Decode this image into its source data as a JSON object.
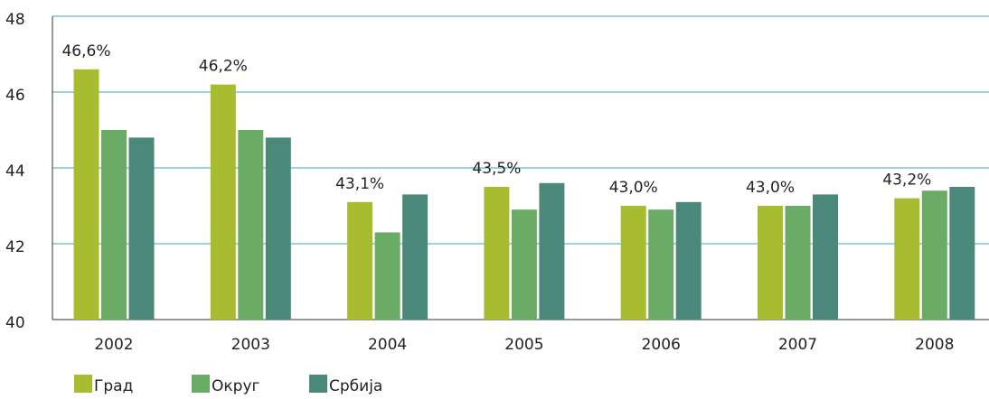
{
  "chart_data": {
    "type": "bar",
    "categories": [
      "2002",
      "2003",
      "2004",
      "2005",
      "2006",
      "2007",
      "2008"
    ],
    "series": [
      {
        "name": "Град",
        "color": "#a7bd2f",
        "values": [
          46.6,
          46.2,
          43.1,
          43.5,
          43.0,
          43.0,
          43.2
        ],
        "value_labels": [
          "46,6%",
          "46,2%",
          "43,1%",
          "43,5%",
          "43,0%",
          "43,0%",
          "43,2%"
        ]
      },
      {
        "name": "Округ",
        "color": "#6aab66",
        "values": [
          45.0,
          45.0,
          42.3,
          42.9,
          42.9,
          43.0,
          43.4
        ]
      },
      {
        "name": "Србија",
        "color": "#4a8979",
        "values": [
          44.8,
          44.8,
          43.3,
          43.6,
          43.1,
          43.3,
          43.5
        ]
      }
    ],
    "ylim": [
      40,
      48
    ],
    "yticks": [
      40,
      42,
      44,
      46,
      48
    ],
    "grid": true,
    "legend": "bottom-left"
  }
}
